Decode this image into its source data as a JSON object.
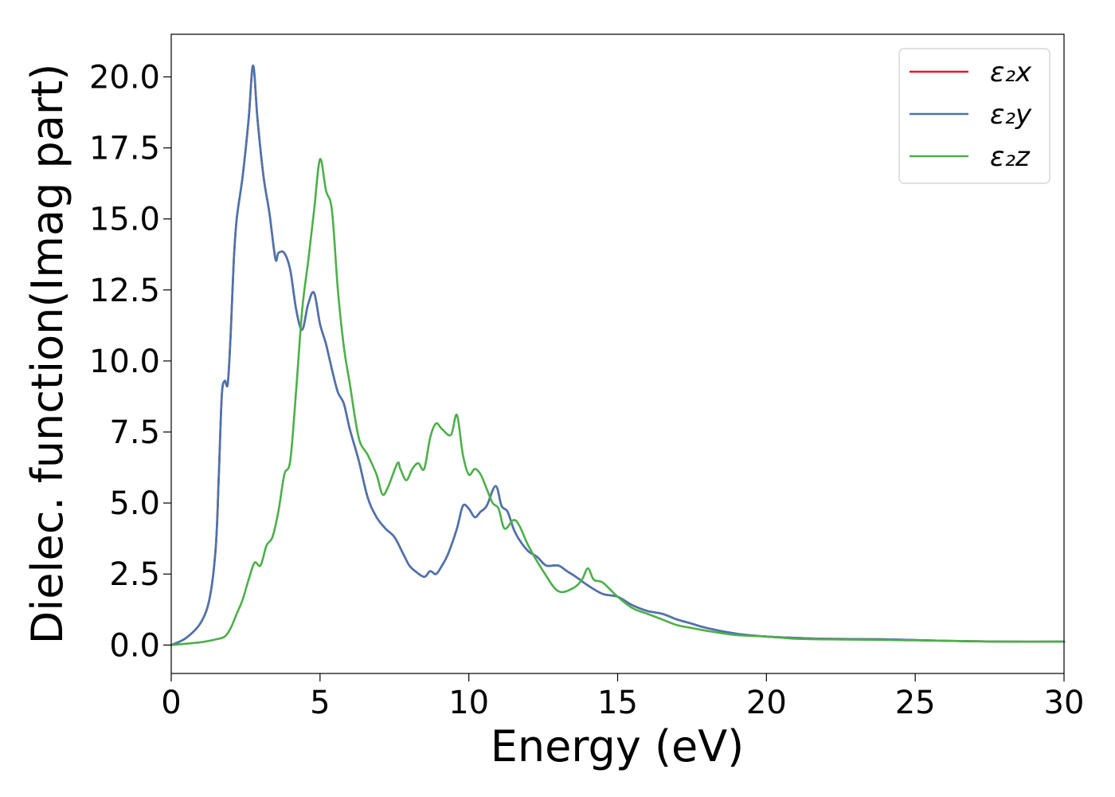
{
  "chart_data": {
    "type": "line",
    "title": "",
    "xlabel": "Energy (eV)",
    "ylabel": "Dielec. function(Imag part)",
    "xlim": [
      0,
      30
    ],
    "ylim": [
      -1.0,
      21.5
    ],
    "xticks": [
      0,
      5,
      10,
      15,
      20,
      25,
      30
    ],
    "xtick_labels": [
      "0",
      "5",
      "10",
      "15",
      "20",
      "25",
      "30"
    ],
    "yticks": [
      0.0,
      2.5,
      5.0,
      7.5,
      10.0,
      12.5,
      15.0,
      17.5,
      20.0
    ],
    "ytick_labels": [
      "0.0",
      "2.5",
      "5.0",
      "7.5",
      "10.0",
      "12.5",
      "15.0",
      "17.5",
      "20.0"
    ],
    "grid": false,
    "legend_position": "top-right",
    "series": [
      {
        "name": "ε₂x",
        "color": "#e41a1c",
        "x": [
          0,
          0.5,
          1.0,
          1.3,
          1.5,
          1.6,
          1.7,
          1.8,
          1.9,
          2.0,
          2.1,
          2.2,
          2.4,
          2.6,
          2.75,
          2.9,
          3.1,
          3.3,
          3.5,
          3.6,
          3.8,
          4.0,
          4.2,
          4.4,
          4.6,
          4.8,
          5.0,
          5.2,
          5.4,
          5.6,
          5.8,
          6.0,
          6.3,
          6.6,
          6.9,
          7.2,
          7.5,
          7.8,
          8.0,
          8.2,
          8.5,
          8.7,
          8.9,
          9.1,
          9.3,
          9.6,
          9.8,
          10.0,
          10.2,
          10.4,
          10.6,
          10.9,
          11.1,
          11.3,
          11.5,
          11.7,
          12.0,
          12.3,
          12.6,
          13.0,
          13.3,
          13.6,
          14.0,
          14.5,
          15.0,
          15.5,
          16.0,
          16.5,
          17.0,
          17.5,
          18.0,
          19.0,
          20.0,
          21.0,
          22.0,
          24.0,
          26.0,
          28.0,
          30.0
        ],
        "values": [
          0,
          0.25,
          0.8,
          1.7,
          3.5,
          6.0,
          8.8,
          9.3,
          9.2,
          11.0,
          13.5,
          15.0,
          16.5,
          18.5,
          20.4,
          18.5,
          16.5,
          15.2,
          13.6,
          13.8,
          13.8,
          13.2,
          11.8,
          11.1,
          12.0,
          12.4,
          11.3,
          10.6,
          9.7,
          8.9,
          8.5,
          7.6,
          6.5,
          5.2,
          4.5,
          4.1,
          3.8,
          3.2,
          2.8,
          2.6,
          2.4,
          2.6,
          2.5,
          2.8,
          3.2,
          4.1,
          4.9,
          4.8,
          4.5,
          4.7,
          4.9,
          5.6,
          4.9,
          4.7,
          4.1,
          3.7,
          3.3,
          3.1,
          2.8,
          2.8,
          2.6,
          2.4,
          2.1,
          1.8,
          1.7,
          1.4,
          1.2,
          1.1,
          0.9,
          0.75,
          0.6,
          0.4,
          0.3,
          0.25,
          0.22,
          0.2,
          0.15,
          0.12,
          0.12
        ]
      },
      {
        "name": "ε₂y",
        "color": "#4a74ae",
        "x": [
          0,
          0.5,
          1.0,
          1.3,
          1.5,
          1.6,
          1.7,
          1.8,
          1.9,
          2.0,
          2.1,
          2.2,
          2.4,
          2.6,
          2.75,
          2.9,
          3.1,
          3.3,
          3.5,
          3.6,
          3.8,
          4.0,
          4.2,
          4.4,
          4.6,
          4.8,
          5.0,
          5.2,
          5.4,
          5.6,
          5.8,
          6.0,
          6.3,
          6.6,
          6.9,
          7.2,
          7.5,
          7.8,
          8.0,
          8.2,
          8.5,
          8.7,
          8.9,
          9.1,
          9.3,
          9.6,
          9.8,
          10.0,
          10.2,
          10.4,
          10.6,
          10.9,
          11.1,
          11.3,
          11.5,
          11.7,
          12.0,
          12.3,
          12.6,
          13.0,
          13.3,
          13.6,
          14.0,
          14.5,
          15.0,
          15.5,
          16.0,
          16.5,
          17.0,
          17.5,
          18.0,
          19.0,
          20.0,
          21.0,
          22.0,
          24.0,
          26.0,
          28.0,
          30.0
        ],
        "values": [
          0,
          0.25,
          0.8,
          1.7,
          3.5,
          6.0,
          8.8,
          9.3,
          9.2,
          11.0,
          13.5,
          15.0,
          16.5,
          18.5,
          20.4,
          18.5,
          16.5,
          15.2,
          13.6,
          13.8,
          13.8,
          13.2,
          11.8,
          11.1,
          12.0,
          12.4,
          11.3,
          10.6,
          9.7,
          8.9,
          8.5,
          7.6,
          6.5,
          5.2,
          4.5,
          4.1,
          3.8,
          3.2,
          2.8,
          2.6,
          2.4,
          2.6,
          2.5,
          2.8,
          3.2,
          4.1,
          4.9,
          4.8,
          4.5,
          4.7,
          4.9,
          5.6,
          4.9,
          4.7,
          4.1,
          3.7,
          3.3,
          3.1,
          2.8,
          2.8,
          2.6,
          2.4,
          2.1,
          1.8,
          1.7,
          1.4,
          1.2,
          1.1,
          0.9,
          0.75,
          0.6,
          0.4,
          0.3,
          0.25,
          0.22,
          0.2,
          0.15,
          0.12,
          0.12
        ]
      },
      {
        "name": "ε₂z",
        "color": "#4daf4a",
        "x": [
          0,
          1.0,
          1.5,
          1.8,
          2.0,
          2.2,
          2.4,
          2.6,
          2.8,
          3.0,
          3.2,
          3.4,
          3.6,
          3.8,
          4.0,
          4.2,
          4.4,
          4.6,
          4.8,
          5.0,
          5.2,
          5.4,
          5.6,
          5.8,
          6.0,
          6.3,
          6.6,
          6.9,
          7.1,
          7.3,
          7.6,
          7.7,
          7.9,
          8.1,
          8.3,
          8.5,
          8.7,
          8.9,
          9.1,
          9.4,
          9.6,
          9.8,
          10.0,
          10.2,
          10.4,
          10.6,
          10.8,
          11.0,
          11.2,
          11.5,
          11.7,
          12.0,
          12.5,
          13.0,
          13.5,
          13.8,
          14.0,
          14.2,
          14.5,
          15.0,
          15.5,
          16.0,
          16.5,
          17.0,
          17.5,
          18.0,
          19.0,
          20.0,
          21.0,
          22.0,
          24.0,
          26.0,
          28.0,
          30.0
        ],
        "values": [
          0,
          0.1,
          0.2,
          0.3,
          0.6,
          1.1,
          1.6,
          2.3,
          2.9,
          2.8,
          3.5,
          3.8,
          4.7,
          6.0,
          6.5,
          9.0,
          11.8,
          13.5,
          15.3,
          17.1,
          16.0,
          15.3,
          12.5,
          10.5,
          9.2,
          7.3,
          6.7,
          6.0,
          5.3,
          5.6,
          6.4,
          6.2,
          5.8,
          6.2,
          6.4,
          6.2,
          7.3,
          7.8,
          7.6,
          7.4,
          8.1,
          6.7,
          6.0,
          6.2,
          6.0,
          5.5,
          5.0,
          4.8,
          4.1,
          4.4,
          4.2,
          3.5,
          2.6,
          1.9,
          2.0,
          2.3,
          2.7,
          2.3,
          2.2,
          1.7,
          1.3,
          1.1,
          0.9,
          0.7,
          0.6,
          0.5,
          0.35,
          0.3,
          0.22,
          0.2,
          0.18,
          0.15,
          0.12,
          0.12
        ]
      }
    ]
  }
}
